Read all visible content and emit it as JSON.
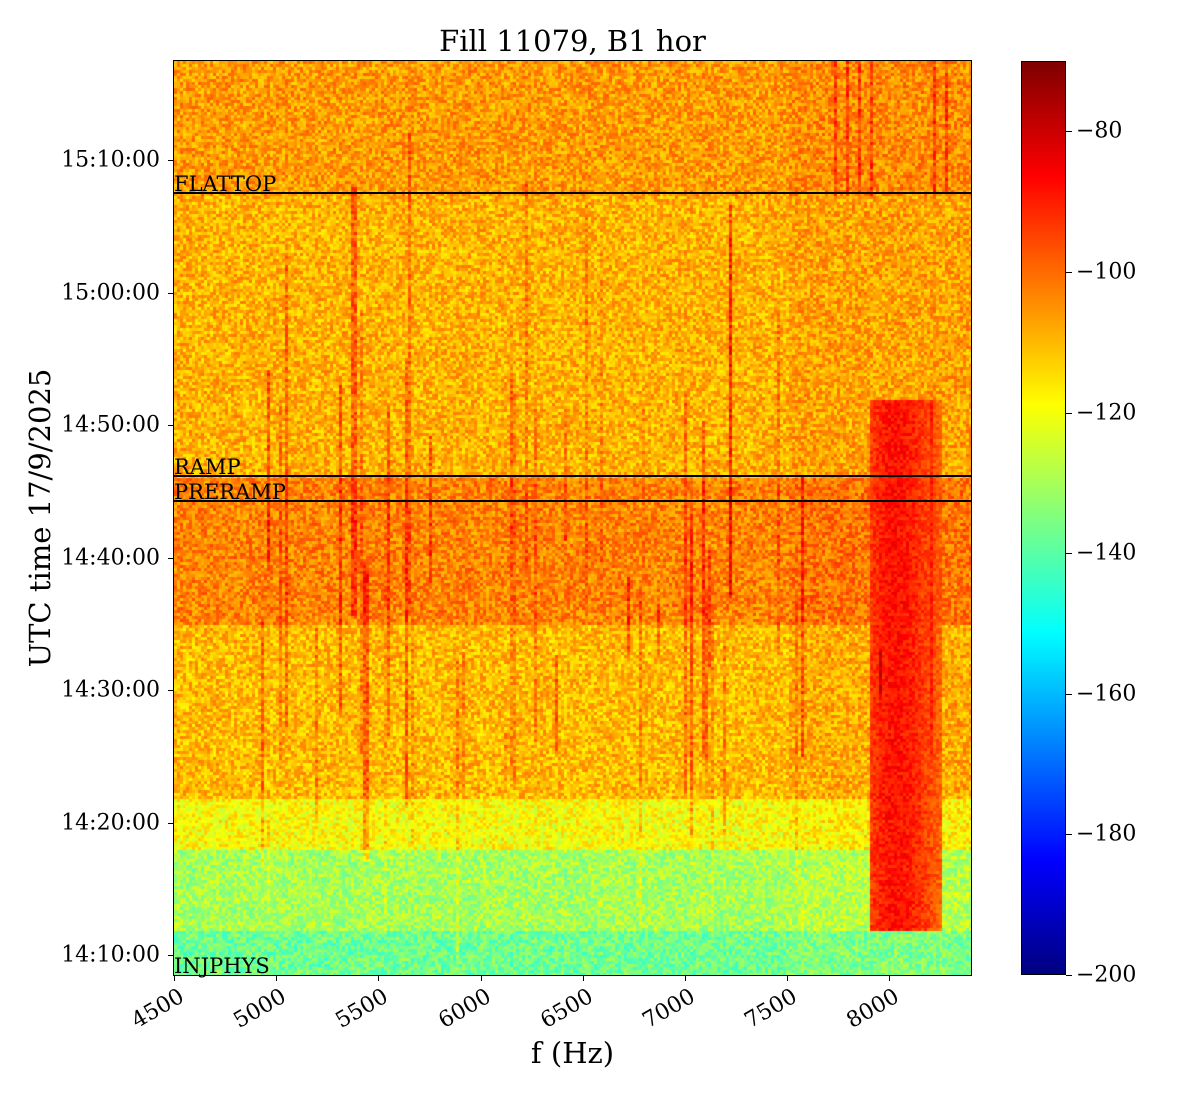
{
  "chart_data": {
    "type": "heatmap",
    "title": "Fill 11079, B1 hor",
    "xlabel": "f (Hz)",
    "ylabel": "UTC time 17/9/2025",
    "xlim": [
      4500,
      8400
    ],
    "ylim": [
      "14:08:30",
      "15:17:30"
    ],
    "x_ticks": [
      4500,
      5000,
      5500,
      6000,
      6500,
      7000,
      7500,
      8000
    ],
    "x_tick_labels": [
      "4500",
      "5000",
      "5500",
      "6000",
      "6500",
      "7000",
      "7500",
      "8000"
    ],
    "y_ticks": [
      "14:10:00",
      "14:20:00",
      "14:30:00",
      "14:40:00",
      "14:50:00",
      "15:00:00",
      "15:10:00"
    ],
    "colormap": "jet",
    "colorbar": {
      "range": [
        -200,
        -70
      ],
      "ticks": [
        -80,
        -100,
        -120,
        -140,
        -160,
        -180,
        -200
      ],
      "tick_labels": [
        "−80",
        "−100",
        "−120",
        "−140",
        "−160",
        "−180",
        "−200"
      ]
    },
    "markers": [
      {
        "label": "FLATTOP",
        "time": "15:07:30"
      },
      {
        "label": "RAMP",
        "time": "14:46:10"
      },
      {
        "label": "PRERAMP",
        "time": "14:44:15"
      },
      {
        "label": "INJPHYS",
        "time": "14:08:30"
      }
    ],
    "background_bands_db": [
      {
        "from": "15:07:30",
        "to": "15:17:30",
        "level": -106
      },
      {
        "from": "14:46:10",
        "to": "15:07:30",
        "level": -109
      },
      {
        "from": "14:35:00",
        "to": "14:46:10",
        "level": -103
      },
      {
        "from": "14:22:00",
        "to": "14:35:00",
        "level": -110
      },
      {
        "from": "14:18:00",
        "to": "14:22:00",
        "level": -119
      },
      {
        "from": "14:12:00",
        "to": "14:18:00",
        "level": -130
      },
      {
        "from": "14:08:30",
        "to": "14:12:00",
        "level": -137
      }
    ],
    "hot_region": {
      "f_from": 7900,
      "f_to": 8250,
      "from": "14:12:00",
      "to": "14:52:00",
      "level": -90
    }
  }
}
